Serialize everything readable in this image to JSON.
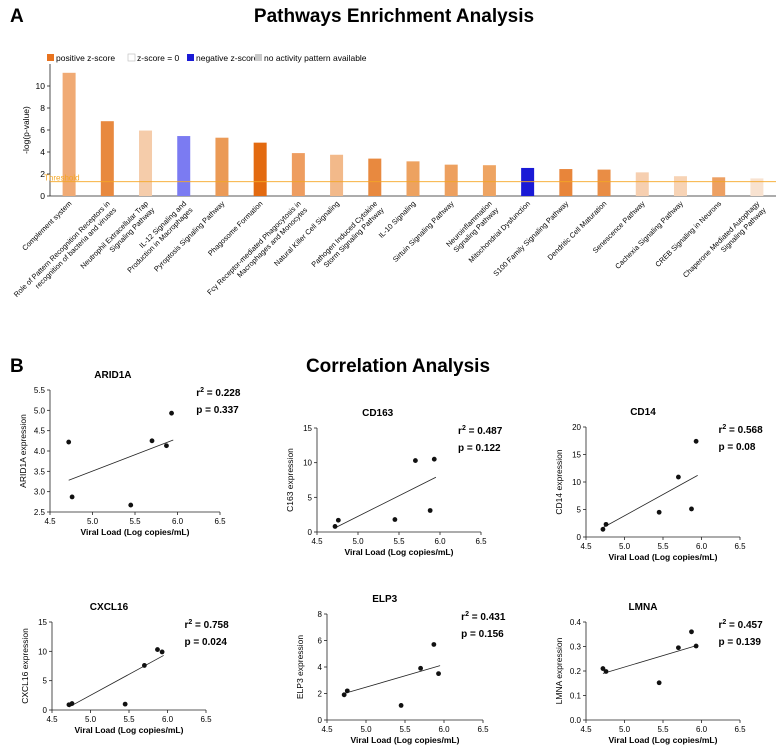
{
  "panel_a": {
    "letter": "A",
    "title": "Pathways Enrichment Analysis",
    "legend": [
      {
        "label": "positive z-score",
        "color": "#e8731f"
      },
      {
        "label": "z-score = 0",
        "color": "#ffffff"
      },
      {
        "label": "negative z-score",
        "color": "#1a1ad6"
      },
      {
        "label": "no activity pattern available",
        "color": "#c8c8c8"
      }
    ],
    "threshold_label": "Threshold",
    "threshold_color": "#f5a623"
  },
  "panel_b": {
    "letter": "B",
    "title": "Correlation Analysis"
  },
  "chart_data": [
    {
      "type": "bar",
      "title": "Pathways Enrichment Analysis",
      "ylabel": "-log(p-value)",
      "xlabel": "",
      "ylim": [
        0,
        12
      ],
      "yticks": [
        0,
        2,
        4,
        6,
        8,
        10
      ],
      "threshold": 1.3,
      "categories": [
        "Complement system",
        "Role of Pattern Recognition Receptors in recognition of bacteria and viruses",
        "Neutrophil Extracellular Trap Signaling Pathway",
        "IL-12 Signaling and Production in Macrophages",
        "Pyroptosis Signaling Pathway",
        "Phagosome Formation",
        "Fcγ Receptor-mediated Phagocytosis in Macrophages and Monocytes",
        "Natural Killer Cell Signaling",
        "Pathogen Induced Cytokine Storm Signaling Pathway",
        "IL-10 Signaling",
        "Sirtuin Signaling Pathway",
        "Neuroinflammation Signaling Pathway",
        "Mitochondrial Dysfunction",
        "S100 Family Signaling Pathway",
        "Dendritic Cell Maturation",
        "Senescence Pathway",
        "Cachexia Signaling Pathway",
        "CREB Signaling in Neurons",
        "Chaperone Mediated Autophagy Signaling Pathway"
      ],
      "values": [
        11.2,
        6.8,
        5.95,
        5.45,
        5.3,
        4.85,
        3.9,
        3.75,
        3.4,
        3.15,
        2.85,
        2.8,
        2.55,
        2.45,
        2.4,
        2.15,
        1.8,
        1.7,
        1.6
      ],
      "colors": [
        "#f0aa74",
        "#e8893f",
        "#f5ccaa",
        "#7b7bf2",
        "#eb9a56",
        "#e36a10",
        "#ee9d60",
        "#f2b98a",
        "#e8893f",
        "#eda260",
        "#eda05f",
        "#eea462",
        "#1a1ad6",
        "#e8853a",
        "#e98d45",
        "#f6cfb0",
        "#f7d3b5",
        "#eda062",
        "#f8e2d0"
      ]
    },
    {
      "type": "scatter",
      "title": "ARID1A",
      "xlabel": "Viral Load (Log copies/mL)",
      "ylabel": "ARID1A expression",
      "xlim": [
        4.5,
        6.5
      ],
      "xticks": [
        4.5,
        5.0,
        5.5,
        6.0,
        6.5
      ],
      "ylim": [
        2.5,
        5.5
      ],
      "yticks": [
        2.5,
        3.0,
        3.5,
        4.0,
        4.5,
        5.0,
        5.5
      ],
      "x": [
        4.72,
        4.76,
        5.45,
        5.7,
        5.87,
        5.93
      ],
      "y": [
        4.22,
        2.87,
        2.67,
        4.25,
        4.13,
        4.93
      ],
      "fit": [
        [
          4.72,
          3.28
        ],
        [
          5.95,
          4.27
        ]
      ],
      "r2": "0.228",
      "p": "0.337"
    },
    {
      "type": "scatter",
      "title": "CD163",
      "xlabel": "Viral Load (Log copies/mL)",
      "ylabel": "C163 expression",
      "xlim": [
        4.5,
        6.5
      ],
      "xticks": [
        4.5,
        5.0,
        5.5,
        6.0,
        6.5
      ],
      "ylim": [
        0,
        15
      ],
      "yticks": [
        0,
        5,
        10,
        15
      ],
      "x": [
        4.72,
        4.76,
        5.45,
        5.7,
        5.88,
        5.93
      ],
      "y": [
        0.8,
        1.7,
        1.8,
        10.3,
        3.1,
        10.5
      ],
      "fit": [
        [
          4.72,
          0.6
        ],
        [
          5.95,
          7.9
        ]
      ],
      "r2": "0.487",
      "p": "0.122"
    },
    {
      "type": "scatter",
      "title": "CD14",
      "xlabel": "Viral Load (Log copies/mL)",
      "ylabel": "CD14 expression",
      "xlim": [
        4.5,
        6.5
      ],
      "xticks": [
        4.5,
        5.0,
        5.5,
        6.0,
        6.5
      ],
      "ylim": [
        0,
        20
      ],
      "yticks": [
        0,
        5,
        10,
        15,
        20
      ],
      "x": [
        4.72,
        4.76,
        5.45,
        5.7,
        5.87,
        5.93
      ],
      "y": [
        1.4,
        2.3,
        4.5,
        10.9,
        5.1,
        17.4
      ],
      "fit": [
        [
          4.72,
          1.7
        ],
        [
          5.95,
          11.2
        ]
      ],
      "r2": "0.568",
      "p": "0.08"
    },
    {
      "type": "scatter",
      "title": "CXCL16",
      "xlabel": "Viral Load (Log copies/mL)",
      "ylabel": "CXCL16 expression",
      "xlim": [
        4.5,
        6.5
      ],
      "xticks": [
        4.5,
        5.0,
        5.5,
        6.0,
        6.5
      ],
      "ylim": [
        0,
        15
      ],
      "yticks": [
        0,
        5,
        10,
        15
      ],
      "x": [
        4.72,
        4.76,
        5.45,
        5.7,
        5.87,
        5.93
      ],
      "y": [
        0.9,
        1.1,
        1.0,
        7.6,
        10.3,
        9.9
      ],
      "fit": [
        [
          4.72,
          0.5
        ],
        [
          5.95,
          9.3
        ]
      ],
      "r2": "0.758",
      "p": "0.024"
    },
    {
      "type": "scatter",
      "title": "ELP3",
      "xlabel": "Viral Load (Log copies/mL)",
      "ylabel": "ELP3 expression",
      "xlim": [
        4.5,
        6.5
      ],
      "xticks": [
        4.5,
        5.0,
        5.5,
        6.0,
        6.5
      ],
      "ylim": [
        0,
        8
      ],
      "yticks": [
        0,
        2,
        4,
        6,
        8
      ],
      "x": [
        4.72,
        4.76,
        5.45,
        5.7,
        5.87,
        5.93
      ],
      "y": [
        1.9,
        2.2,
        1.1,
        3.9,
        5.7,
        3.5
      ],
      "fit": [
        [
          4.72,
          2.0
        ],
        [
          5.95,
          4.1
        ]
      ],
      "r2": "0.431",
      "p": "0.156"
    },
    {
      "type": "scatter",
      "title": "LMNA",
      "xlabel": "Viral Load (Log copies/mL)",
      "ylabel": "LMNA expression",
      "xlim": [
        4.5,
        6.5
      ],
      "xticks": [
        4.5,
        5.0,
        5.5,
        6.0,
        6.5
      ],
      "ylim": [
        0.0,
        0.4
      ],
      "yticks": [
        0.0,
        0.1,
        0.2,
        0.3,
        0.4
      ],
      "x": [
        4.72,
        4.76,
        5.45,
        5.7,
        5.87,
        5.93
      ],
      "y": [
        0.21,
        0.198,
        0.152,
        0.295,
        0.36,
        0.302
      ],
      "fit": [
        [
          4.72,
          0.19
        ],
        [
          5.95,
          0.305
        ]
      ],
      "r2": "0.457",
      "p": "0.139"
    }
  ]
}
